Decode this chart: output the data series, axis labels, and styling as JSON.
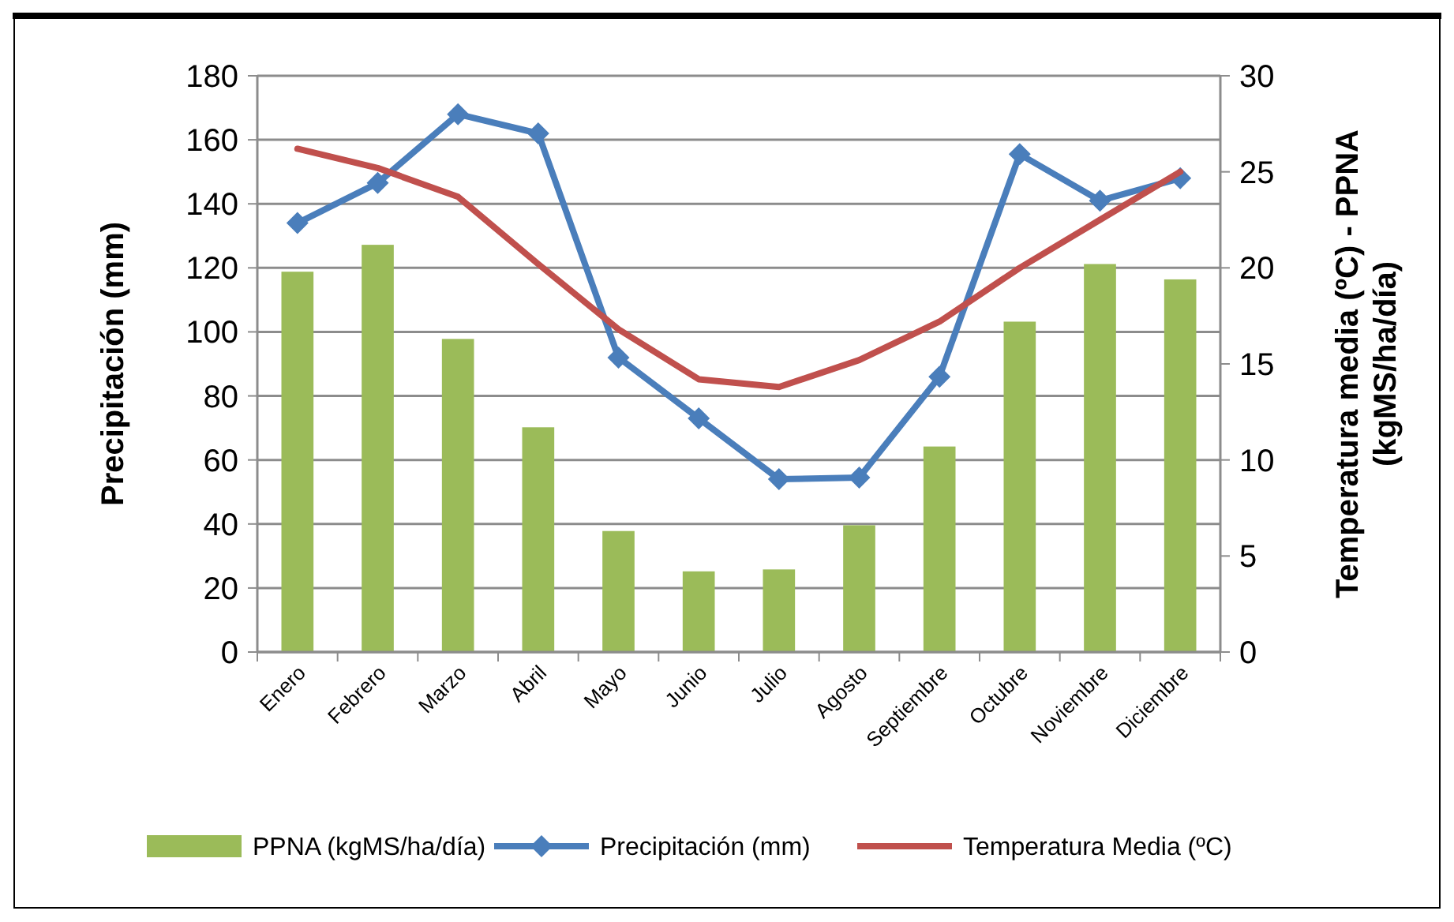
{
  "chart_data": {
    "type": "bar",
    "ylabel": "Precipitación (mm)",
    "y2label": "Temperatura media (ºC) - PPNA (kgMS/ha/día)",
    "categories": [
      "Enero",
      "Febrero",
      "Marzo",
      "Abril",
      "Mayo",
      "Junio",
      "Julio",
      "Agosto",
      "Septiembre",
      "Octubre",
      "Noviembre",
      "Diciembre"
    ],
    "series": [
      {
        "name": "PPNA (kgMS/ha/día)",
        "axis": "y2",
        "color": "#9bbb59",
        "values": [
          19.8,
          21.2,
          16.3,
          11.7,
          6.3,
          4.2,
          4.3,
          6.6,
          10.7,
          17.2,
          20.2,
          19.4
        ]
      },
      {
        "name": "Precipitación (mm)",
        "type": "line",
        "color": "#4a7ebb",
        "marker": "diamond",
        "values": [
          134,
          146.5,
          168,
          162,
          92,
          73,
          54,
          54.5,
          86,
          155.5,
          141,
          148
        ]
      },
      {
        "name": "Temperatura Media (ºC)",
        "type": "line",
        "axis": "y2",
        "color": "#c0504d",
        "marker": "none",
        "values": [
          26.2,
          25.2,
          23.7,
          20.2,
          16.8,
          14.2,
          13.8,
          15.2,
          17.2,
          20,
          22.5,
          25
        ]
      }
    ],
    "ylim": [
      0,
      180
    ],
    "yticks": [
      0,
      20,
      40,
      60,
      80,
      100,
      120,
      140,
      160,
      180
    ],
    "y2lim": [
      0,
      30
    ],
    "y2ticks": [
      0,
      5,
      10,
      15,
      20,
      25,
      30
    ],
    "grid": "y",
    "legend": "bottom"
  }
}
